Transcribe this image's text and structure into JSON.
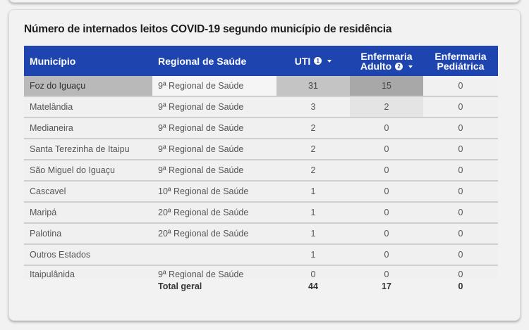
{
  "card": {
    "title": "Número de internados leitos COVID-19 segundo município de residência"
  },
  "table": {
    "headers": {
      "municipio": "Município",
      "regional": "Regional de Saúde",
      "uti": "UTI",
      "uti_badge": "1",
      "enf_adulto_line1": "Enfermaria",
      "enf_adulto_line2": "Adulto",
      "enf_adulto_badge": "2",
      "enf_ped_line1": "Enfermaria",
      "enf_ped_line2": "Pediátrica"
    },
    "rows": [
      {
        "municipio": "Foz do Iguaçu",
        "regional": "9ª Regional de Saúde",
        "uti": "31",
        "enf_adulto": "15",
        "enf_ped": "0"
      },
      {
        "municipio": "Matelândia",
        "regional": "9ª Regional de Saúde",
        "uti": "3",
        "enf_adulto": "2",
        "enf_ped": "0"
      },
      {
        "municipio": "Medianeira",
        "regional": "9ª Regional de Saúde",
        "uti": "2",
        "enf_adulto": "0",
        "enf_ped": "0"
      },
      {
        "municipio": "Santa Terezinha de Itaipu",
        "regional": "9ª Regional de Saúde",
        "uti": "2",
        "enf_adulto": "0",
        "enf_ped": "0"
      },
      {
        "municipio": "São Miguel do Iguaçu",
        "regional": "9ª Regional de Saúde",
        "uti": "2",
        "enf_adulto": "0",
        "enf_ped": "0"
      },
      {
        "municipio": "Cascavel",
        "regional": "10ª Regional de Saúde",
        "uti": "1",
        "enf_adulto": "0",
        "enf_ped": "0"
      },
      {
        "municipio": "Maripá",
        "regional": "20ª Regional de Saúde",
        "uti": "1",
        "enf_adulto": "0",
        "enf_ped": "0"
      },
      {
        "municipio": "Palotina",
        "regional": "20ª Regional de Saúde",
        "uti": "1",
        "enf_adulto": "0",
        "enf_ped": "0"
      },
      {
        "municipio": "Outros Estados",
        "regional": "",
        "uti": "1",
        "enf_adulto": "0",
        "enf_ped": "0"
      },
      {
        "municipio": "Itaipulânida",
        "regional": "9ª Regional de Saúde",
        "uti": "0",
        "enf_adulto": "0",
        "enf_ped": "0"
      }
    ],
    "total": {
      "label": "Total geral",
      "uti": "44",
      "enf_adulto": "17",
      "enf_ped": "0"
    }
  },
  "colors": {
    "header_bg": "#1e44b0",
    "highlight_dark": "#a8a8a8",
    "highlight_mid": "#c4c4c4"
  }
}
